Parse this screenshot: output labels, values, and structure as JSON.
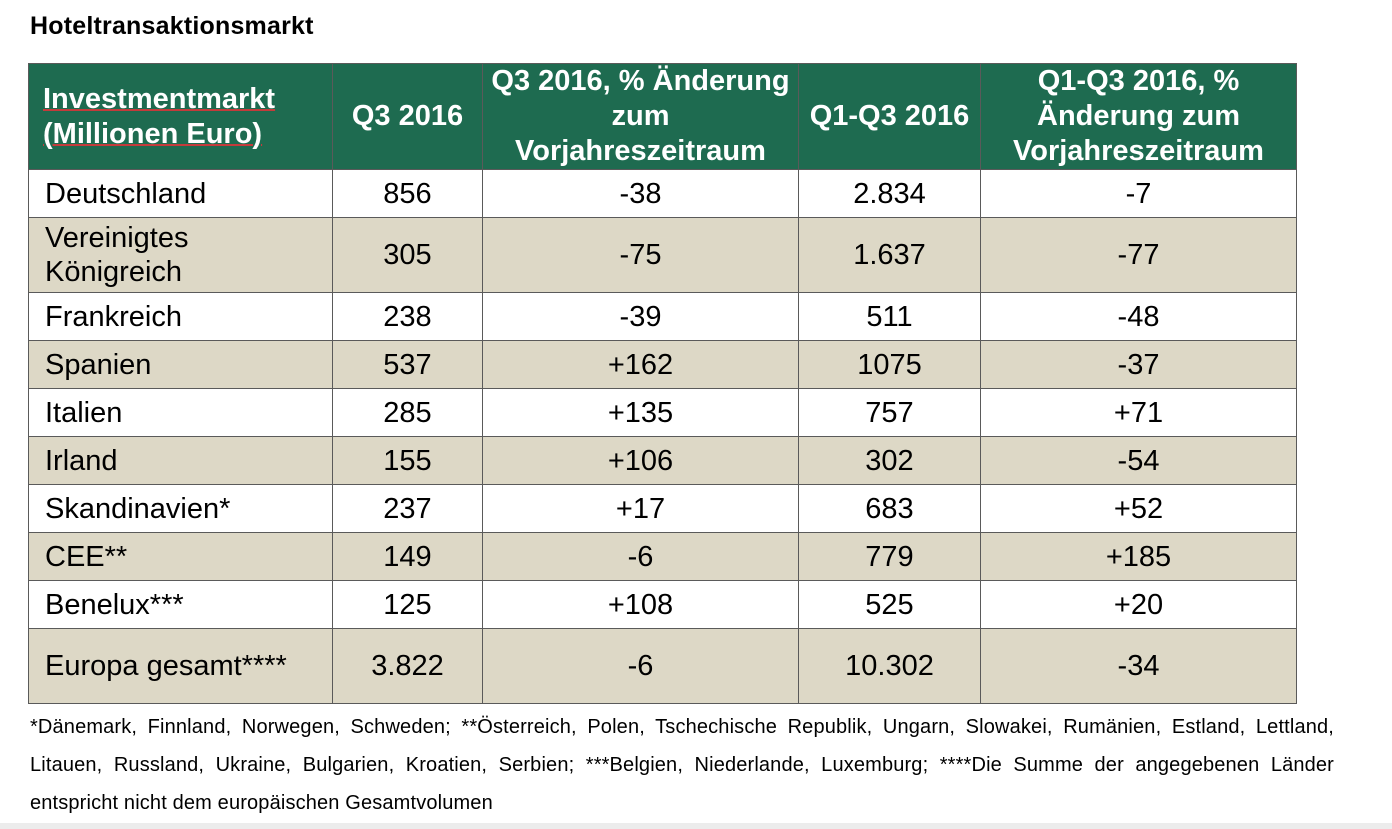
{
  "title": "Hoteltransaktionsmarkt",
  "table": {
    "headers": [
      "Investmentmarkt (Millionen Euro)",
      "Q3 2016",
      "Q3 2016, % Änderung zum Vorjahreszeitraum",
      "Q1-Q3 2016",
      "Q1-Q3 2016, % Änderung zum Vorjahreszeitraum"
    ],
    "rows": [
      {
        "country": "Deutschland",
        "q3": "856",
        "q3_change": "-38",
        "q1q3": "2.834",
        "q1q3_change": "-7"
      },
      {
        "country": "Vereinigtes Königreich",
        "q3": "305",
        "q3_change": "-75",
        "q1q3": "1.637",
        "q1q3_change": "-77"
      },
      {
        "country": "Frankreich",
        "q3": "238",
        "q3_change": "-39",
        "q1q3": "511",
        "q1q3_change": "-48"
      },
      {
        "country": "Spanien",
        "q3": "537",
        "q3_change": "+162",
        "q1q3": "1075",
        "q1q3_change": "-37"
      },
      {
        "country": "Italien",
        "q3": "285",
        "q3_change": "+135",
        "q1q3": "757",
        "q1q3_change": "+71"
      },
      {
        "country": "Irland",
        "q3": "155",
        "q3_change": "+106",
        "q1q3": "302",
        "q1q3_change": "-54"
      },
      {
        "country": "Skandinavien*",
        "q3": "237",
        "q3_change": "+17",
        "q1q3": "683",
        "q1q3_change": "+52"
      },
      {
        "country": "CEE**",
        "q3": "149",
        "q3_change": "-6",
        "q1q3": "779",
        "q1q3_change": "+185"
      },
      {
        "country": "Benelux***",
        "q3": "125",
        "q3_change": "+108",
        "q1q3": "525",
        "q1q3_change": "+20"
      },
      {
        "country": "Europa gesamt****",
        "q3": "3.822",
        "q3_change": "-6",
        "q1q3": "10.302",
        "q1q3_change": "-34"
      }
    ]
  },
  "footnote": "*Dänemark, Finnland, Norwegen, Schweden; **Österreich, Polen, Tschechische Republik, Ungarn, Slowakei, Rumänien, Estland, Lettland, Litauen, Russland, Ukraine, Bulgarien, Kroatien, Serbien; ***Belgien, Niederlande, Luxemburg; ****Die Summe der angegebenen Länder entspricht nicht dem europäischen Gesamtvolumen",
  "colors": {
    "header_bg": "#1e6b50",
    "header_text": "#ffffff",
    "shaded_row": "#ddd8c6",
    "border": "#5a5a5a"
  }
}
